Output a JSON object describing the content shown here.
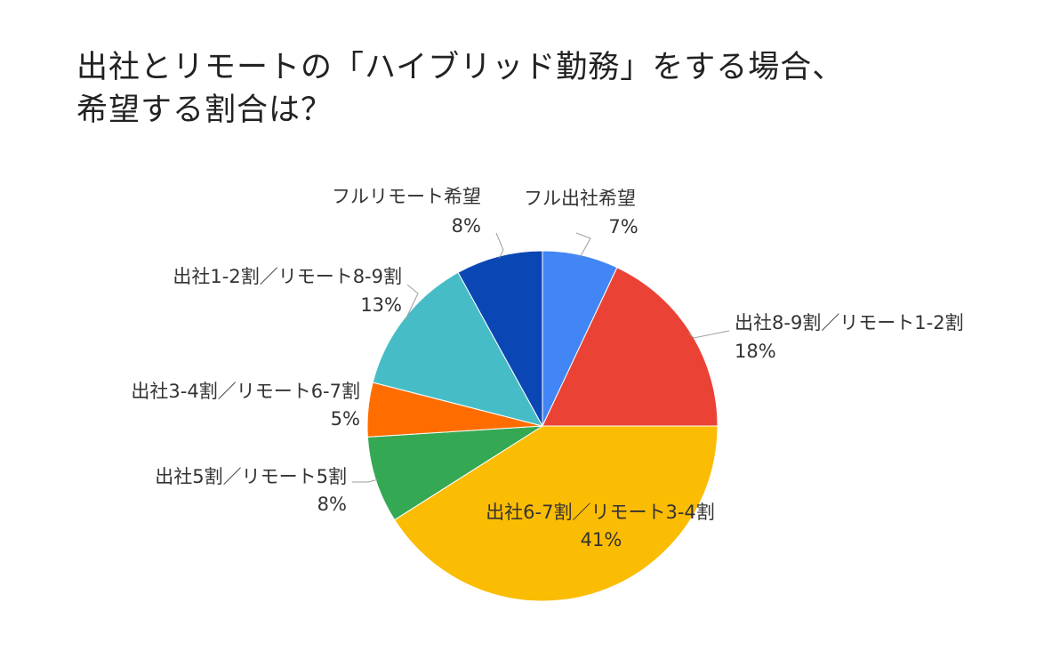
{
  "title_lines": [
    "出社とリモートの「ハイブリッド勤務」をする場合、",
    "希望する割合は？"
  ],
  "chart_data": {
    "type": "pie",
    "title": "出社とリモートの「ハイブリッド勤務」をする場合、希望する割合は？",
    "slices": [
      {
        "label": "フル出社希望",
        "value": 7,
        "display": "7%",
        "color": "#4285F4"
      },
      {
        "label": "出社8-9割／リモート1-2割",
        "value": 18,
        "display": "18%",
        "color": "#EA4335"
      },
      {
        "label": "出社6-7割／リモート3-4割",
        "value": 41,
        "display": "41%",
        "color": "#FBBC04"
      },
      {
        "label": "出社5割／リモート5割",
        "value": 8,
        "display": "8%",
        "color": "#34A853"
      },
      {
        "label": "出社3-4割／リモート6-7割",
        "value": 5,
        "display": "5%",
        "color": "#FF6D01"
      },
      {
        "label": "出社1-2割／リモート8-9割",
        "value": 13,
        "display": "13%",
        "color": "#46BDC6"
      },
      {
        "label": "フルリモート希望",
        "value": 8,
        "display": "8%",
        "color": "#0B47B4"
      }
    ],
    "start_angle": "12 o'clock",
    "direction": "clockwise",
    "legend": "none"
  }
}
